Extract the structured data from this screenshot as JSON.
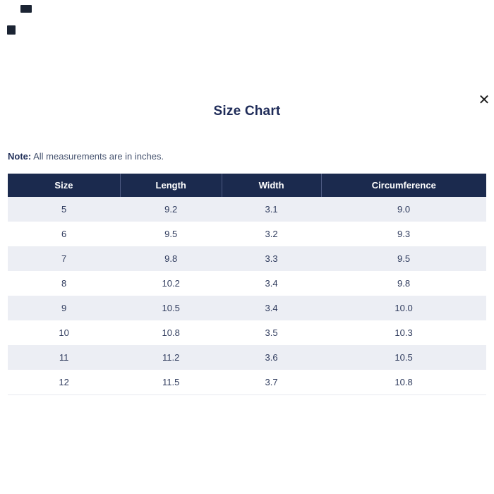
{
  "modal": {
    "title": "Size Chart",
    "close_icon": "✕",
    "note": {
      "label": "Note:",
      "text": " All measurements are in inches."
    }
  },
  "table": {
    "columns": [
      "Size",
      "Length",
      "Width",
      "Circumference"
    ],
    "rows": [
      [
        "5",
        "9.2",
        "3.1",
        "9.0"
      ],
      [
        "6",
        "9.5",
        "3.2",
        "9.3"
      ],
      [
        "7",
        "9.8",
        "3.3",
        "9.5"
      ],
      [
        "8",
        "10.2",
        "3.4",
        "9.8"
      ],
      [
        "9",
        "10.5",
        "3.4",
        "10.0"
      ],
      [
        "10",
        "10.8",
        "3.5",
        "10.3"
      ],
      [
        "11",
        "11.2",
        "3.6",
        "10.5"
      ],
      [
        "12",
        "11.5",
        "3.7",
        "10.8"
      ]
    ]
  },
  "colors": {
    "header_bg": "#1b2a4e",
    "row_alt_bg": "#eceef4",
    "title_text": "#1e2b58",
    "cell_text": "#303c5e",
    "header_text": "#ffffff"
  },
  "decorations": {
    "corner_marks": 2
  }
}
